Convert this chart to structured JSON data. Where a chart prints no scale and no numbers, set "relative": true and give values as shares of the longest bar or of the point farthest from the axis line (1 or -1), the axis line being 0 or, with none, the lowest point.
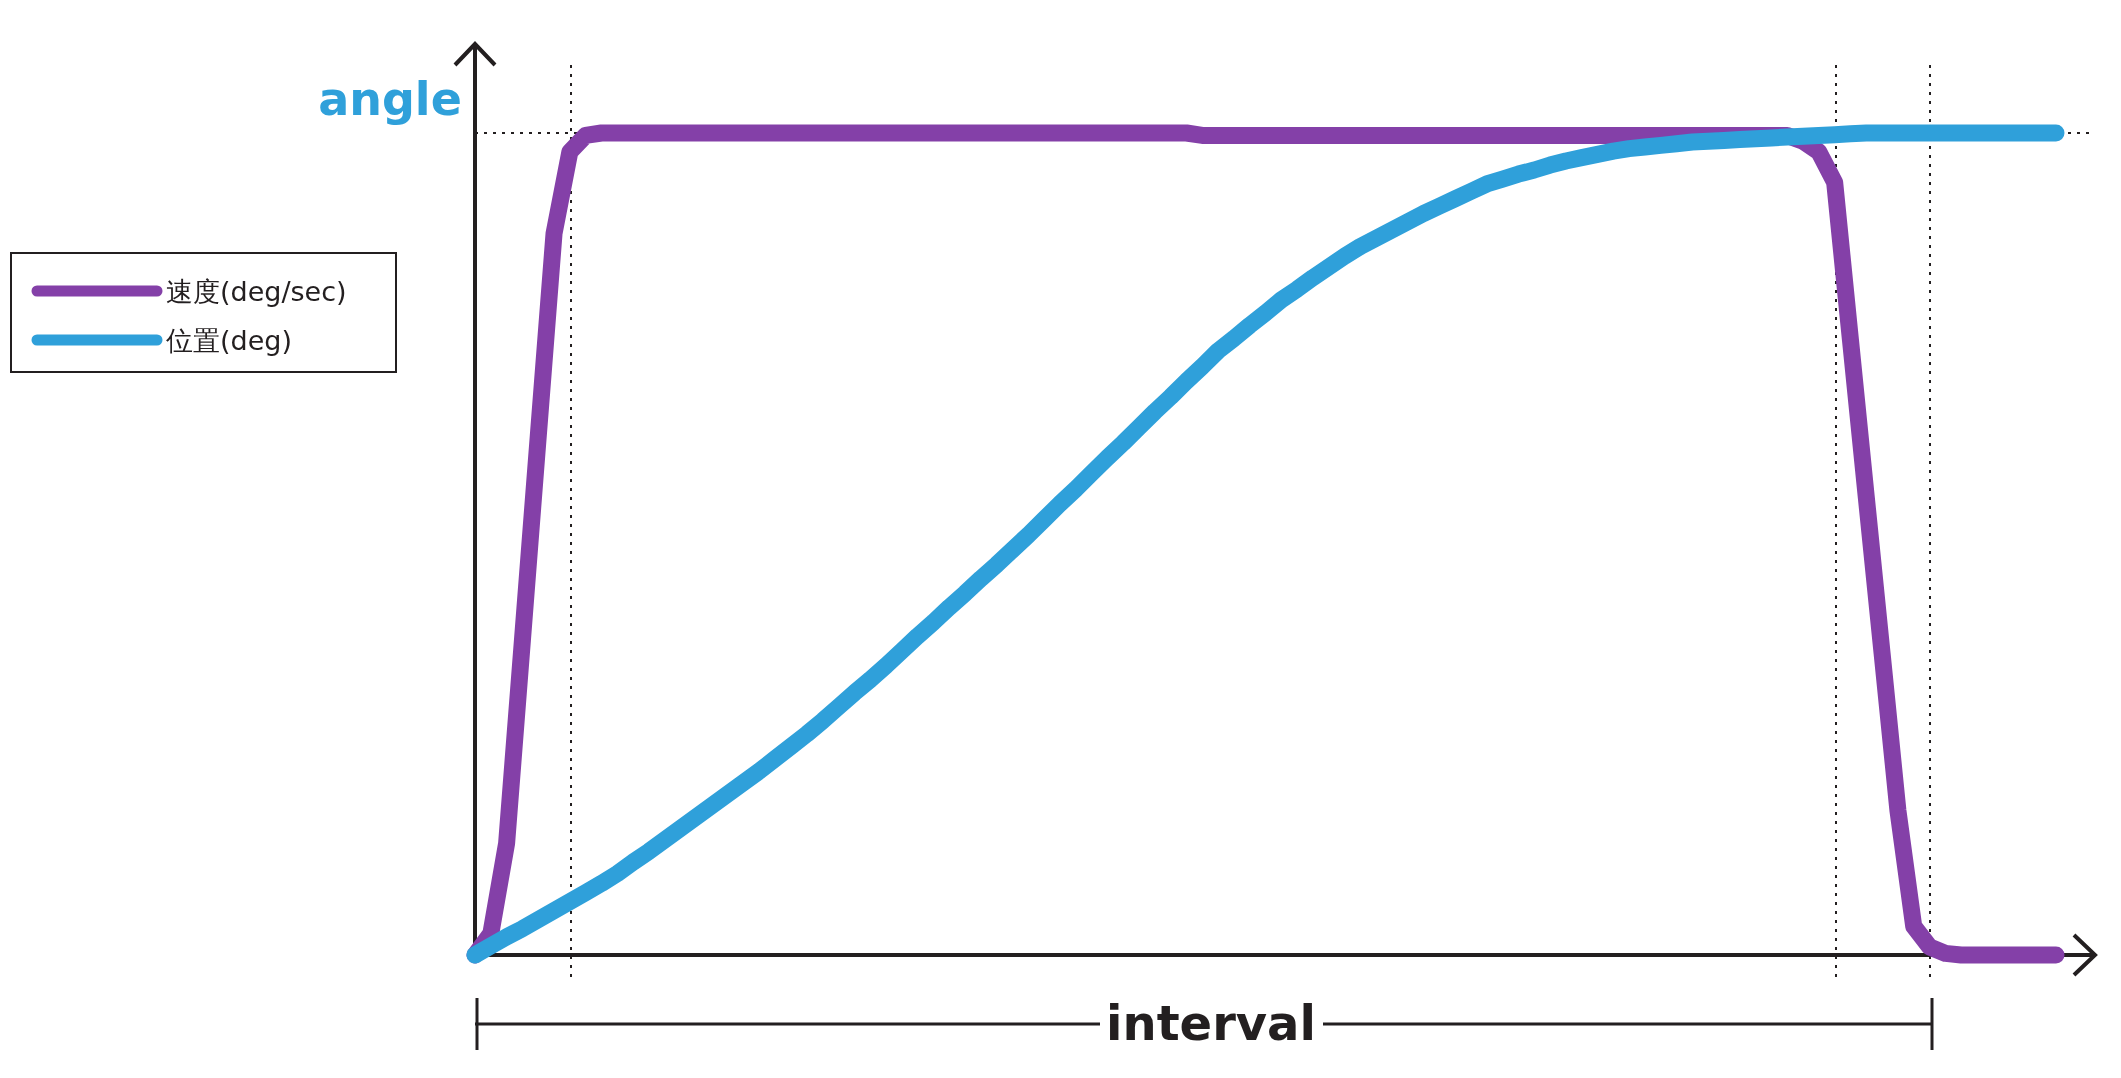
{
  "chart_data": {
    "type": "line",
    "ylabel": "angle",
    "relative": true,
    "legend": "left",
    "grid": true,
    "categories": [
      null,
      null,
      null,
      null,
      null,
      null,
      null,
      null,
      null,
      null,
      null,
      null,
      null,
      null,
      null,
      null,
      null,
      null,
      null,
      null,
      null,
      null,
      null,
      null,
      null,
      null,
      null,
      null,
      null,
      null,
      null,
      null,
      null,
      null,
      null,
      null,
      null,
      null,
      null,
      null,
      null,
      null,
      null,
      null,
      null,
      null,
      null,
      null,
      null,
      null,
      null,
      null,
      null,
      null,
      null,
      null,
      null,
      null,
      null,
      null,
      null,
      null,
      null,
      null,
      null,
      null,
      null,
      null,
      null,
      null,
      null,
      null,
      null,
      null,
      null,
      null,
      null,
      null,
      null,
      null,
      null,
      null,
      null,
      null,
      null,
      null,
      null,
      null,
      null,
      null,
      null,
      null,
      null,
      null,
      null,
      null,
      null,
      null,
      null,
      null,
      null
    ],
    "series": [
      {
        "name": "速度(deg/sec)",
        "color": "#8440a8",
        "values": [
          0,
          0.026,
          0.136,
          0.383,
          0.631,
          0.878,
          0.977,
          0.997,
          1,
          1,
          1,
          1,
          1,
          1,
          1,
          1,
          1,
          1,
          1,
          1,
          1,
          1,
          1,
          1,
          1,
          1,
          1,
          1,
          1,
          1,
          1,
          1,
          1,
          1,
          1,
          1,
          1,
          1,
          1,
          1,
          1,
          1,
          1,
          1,
          1,
          1,
          0.997,
          0.997,
          0.997,
          0.997,
          0.997,
          0.997,
          0.997,
          0.997,
          0.997,
          0.997,
          0.997,
          0.997,
          0.997,
          0.997,
          0.997,
          0.997,
          0.997,
          0.997,
          0.997,
          0.997,
          0.997,
          0.997,
          0.997,
          0.997,
          0.997,
          0.997,
          0.997,
          0.997,
          0.997,
          0.997,
          0.997,
          0.997,
          0.997,
          0.997,
          0.997,
          0.997,
          0.997,
          0.997,
          0.99,
          0.977,
          0.94,
          0.748,
          0.557,
          0.367,
          0.176,
          0.035,
          0.01,
          0.002,
          0,
          0,
          0,
          0,
          0,
          0,
          0
        ]
      },
      {
        "name": "位置(deg)",
        "color": "#2fa0da",
        "values": [
          0,
          0.011,
          0.022,
          0.032,
          0.043,
          0.054,
          0.065,
          0.076,
          0.087,
          0.099,
          0.113,
          0.126,
          0.14,
          0.154,
          0.168,
          0.182,
          0.196,
          0.21,
          0.224,
          0.239,
          0.254,
          0.269,
          0.285,
          0.302,
          0.319,
          0.335,
          0.352,
          0.37,
          0.388,
          0.405,
          0.423,
          0.44,
          0.458,
          0.475,
          0.493,
          0.511,
          0.53,
          0.549,
          0.567,
          0.586,
          0.605,
          0.623,
          0.642,
          0.661,
          0.679,
          0.698,
          0.716,
          0.735,
          0.75,
          0.766,
          0.781,
          0.797,
          0.81,
          0.824,
          0.837,
          0.85,
          0.862,
          0.872,
          0.882,
          0.892,
          0.902,
          0.911,
          0.92,
          0.929,
          0.938,
          0.944,
          0.95,
          0.955,
          0.961,
          0.966,
          0.97,
          0.974,
          0.978,
          0.981,
          0.983,
          0.985,
          0.987,
          0.989,
          0.99,
          0.991,
          0.992,
          0.993,
          0.994,
          0.995,
          0.996,
          0.997,
          0.998,
          0.999,
          1,
          1,
          1,
          1,
          1,
          1,
          1,
          1,
          1,
          1,
          1,
          1,
          1
        ]
      }
    ],
    "annotations": [
      "interval"
    ]
  }
}
